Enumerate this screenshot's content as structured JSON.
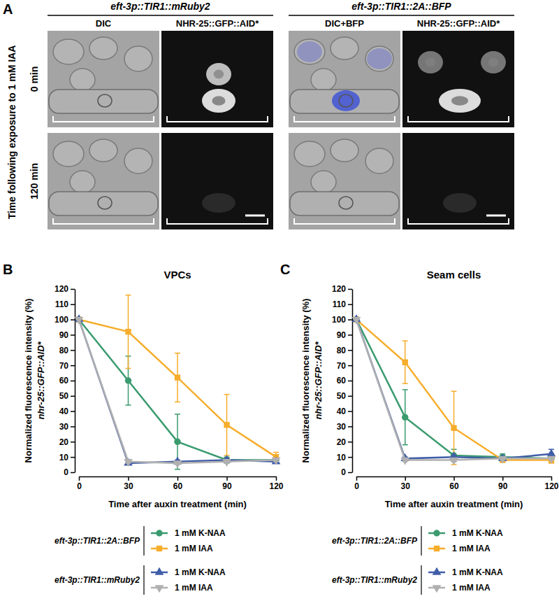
{
  "panel_a": {
    "label": "A",
    "groups": [
      {
        "title": "eft-3p::TIR1::mRuby2",
        "columns": [
          "DIC",
          "NHR-25::GFP::AID*"
        ]
      },
      {
        "title": "eft-3p::TIR1::2A::BFP",
        "columns": [
          "DIC+BFP",
          "NHR-25::GFP::AID*"
        ]
      }
    ],
    "row_axis_label": "Time following exposure to 1 mM IAA",
    "rows": [
      "0 min",
      "120 min"
    ]
  },
  "chart_data": [
    {
      "type": "line",
      "panel": "B",
      "title": "VPCs",
      "x_label": "Time after auxin treatment (min)",
      "y_label": [
        "Normalized fluorescence intensity (%)",
        "nhr-25::GFP::AID*"
      ],
      "x": [
        0,
        30,
        60,
        90,
        120
      ],
      "xlim": [
        0,
        120
      ],
      "xticks": [
        0,
        30,
        60,
        90,
        120
      ],
      "ylim": [
        0,
        120
      ],
      "yticks": [
        0,
        10,
        20,
        30,
        40,
        50,
        60,
        70,
        80,
        90,
        100,
        110,
        120
      ],
      "series": [
        {
          "name": "1 mM K-NAA",
          "group": "eft-3p::TIR1::2A::BFP",
          "color": "#3a9b6f",
          "marker": "circle",
          "line_style": "solid",
          "values": [
            100,
            60,
            20,
            8,
            8
          ],
          "errors": [
            0,
            16,
            18,
            2,
            1
          ]
        },
        {
          "name": "1 mM IAA",
          "group": "eft-3p::TIR1::2A::BFP",
          "color": "#f6ad2b",
          "marker": "square",
          "line_style": "solid",
          "values": [
            100,
            92,
            62,
            31,
            10
          ],
          "errors": [
            0,
            24,
            16,
            20,
            3
          ]
        },
        {
          "name": "1 mM K-NAA",
          "group": "eft-3p::TIR1::mRuby2",
          "color": "#3f5da8",
          "marker": "triangle",
          "line_style": "solid",
          "values": [
            100,
            6,
            7,
            8,
            7
          ],
          "errors": [
            0,
            1,
            1,
            1,
            1
          ]
        },
        {
          "name": "1 mM IAA",
          "group": "eft-3p::TIR1::mRuby2",
          "color": "#b0b0b0",
          "marker": "triangle-down",
          "line_style": "solid",
          "values": [
            100,
            7,
            6,
            7,
            8
          ],
          "errors": [
            0,
            1,
            1,
            1,
            1
          ]
        }
      ]
    },
    {
      "type": "line",
      "panel": "C",
      "title": "Seam cells",
      "x_label": "Time after auxin treatment (min)",
      "y_label": [
        "Normalized fluorescence intensity (%)",
        "nhr-25::GFP::AID*"
      ],
      "x": [
        0,
        30,
        60,
        90,
        120
      ],
      "xlim": [
        0,
        120
      ],
      "xticks": [
        0,
        30,
        60,
        90,
        120
      ],
      "ylim": [
        0,
        120
      ],
      "yticks": [
        0,
        10,
        20,
        30,
        40,
        50,
        60,
        70,
        80,
        90,
        100,
        110,
        120
      ],
      "series": [
        {
          "name": "1 mM K-NAA",
          "group": "eft-3p::TIR1::2A::BFP",
          "color": "#3a9b6f",
          "marker": "circle",
          "line_style": "solid",
          "values": [
            100,
            36,
            11,
            10,
            9
          ],
          "errors": [
            0,
            18,
            4,
            2,
            2
          ]
        },
        {
          "name": "1 mM IAA",
          "group": "eft-3p::TIR1::2A::BFP",
          "color": "#f6ad2b",
          "marker": "square",
          "line_style": "solid",
          "values": [
            100,
            72,
            29,
            8,
            8
          ],
          "errors": [
            0,
            14,
            24,
            1,
            2
          ]
        },
        {
          "name": "1 mM K-NAA",
          "group": "eft-3p::TIR1::mRuby2",
          "color": "#3f5da8",
          "marker": "triangle",
          "line_style": "solid",
          "values": [
            100,
            9,
            10,
            9,
            12
          ],
          "errors": [
            0,
            1,
            1,
            1,
            3
          ]
        },
        {
          "name": "1 mM IAA",
          "group": "eft-3p::TIR1::mRuby2",
          "color": "#b0b0b0",
          "marker": "triangle-down",
          "line_style": "solid",
          "values": [
            100,
            8,
            8,
            9,
            9
          ],
          "errors": [
            0,
            1,
            1,
            1,
            1
          ]
        }
      ]
    }
  ]
}
